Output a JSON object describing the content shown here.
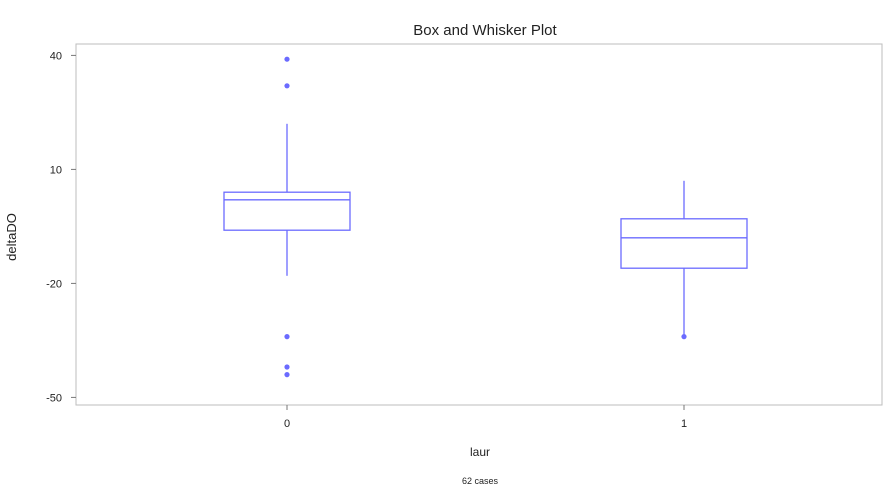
{
  "chart_data": {
    "type": "boxplot",
    "title": "Box and Whisker Plot",
    "xlabel": "laur",
    "ylabel": "deltaDO",
    "footer": "62 cases",
    "categories": [
      "0",
      "1"
    ],
    "yticks": [
      "40",
      "10",
      "-20",
      "-50"
    ],
    "ylim": [
      -52,
      43
    ],
    "grid": false,
    "color": "#6b6bff",
    "boxes": [
      {
        "category": "0",
        "whisker_low": -18,
        "q1": -6,
        "median": 2,
        "q3": 4,
        "whisker_high": 22,
        "outliers": [
          39,
          32,
          -34,
          -42,
          -44
        ]
      },
      {
        "category": "1",
        "whisker_low": -34,
        "q1": -16,
        "median": -8,
        "q3": -3,
        "whisker_high": 7,
        "outliers": [
          -34
        ]
      }
    ]
  }
}
